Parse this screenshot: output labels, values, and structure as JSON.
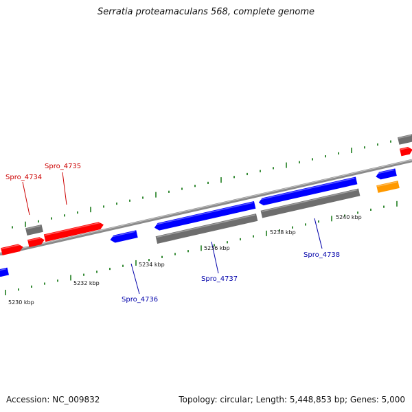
{
  "title": "Serratia proteamaculans 568, complete genome",
  "accession": "Accession: NC_009832",
  "summary": "Topology: circular; Length: 5,448,853 bp; Genes: 5,000",
  "colors": {
    "forward_gene": "#ff0000",
    "reverse_gene": "#0000ff",
    "other_feature": "#ff9900",
    "cds_gray": "#6e6e6e",
    "backbone": "#888888",
    "tick": "#1e7d1e",
    "label_red": "#cc0000",
    "label_blue": "#0000aa"
  },
  "kbp_labels": [
    "5230 kbp",
    "5232 kbp",
    "5234 kbp",
    "5236 kbp",
    "5238 kbp",
    "5240 kbp"
  ],
  "gene_labels": [
    {
      "text": "Spro_4734",
      "color": "red"
    },
    {
      "text": "Spro_4735",
      "color": "red"
    },
    {
      "text": "Spro_4736",
      "color": "blue"
    },
    {
      "text": "Spro_4737",
      "color": "blue"
    },
    {
      "text": "Spro_4738",
      "color": "blue"
    }
  ]
}
